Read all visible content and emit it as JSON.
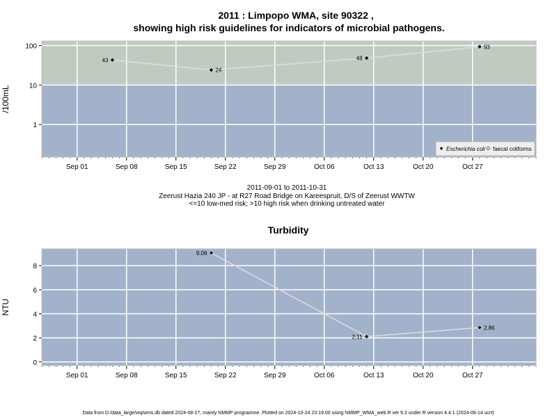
{
  "header": {
    "title_line1": "2011 : Limpopo WMA, site 90322 ,",
    "title_line2": "showing high risk guidelines for indicators of microbial pathogens."
  },
  "middle": {
    "date_range": "2011-09-01 to 2011-10-31",
    "site_desc": "Zeerust Hazia 240 JP - at R27 Road Bridge on Kareespruit, D/S of Zeerust WWTW",
    "risk_note": "<=10 low-med risk; >10 high risk when drinking untreated water"
  },
  "footer": {
    "text": "Data from D:/data_large/wq/wms.db dated 2024-08-27, mainly NMMP programme. Plotted on 2024-10-24 23:19:00 using NMMP_WMA_web.R ver 9.3 under R version 4.4.1 (2024-06-14 ucrt)"
  },
  "colors": {
    "low_risk_band": "#a2b2cb",
    "high_risk_band": "#c1cac0",
    "turbidity_bg": "#a2b2cb",
    "grid": "#ffffff",
    "line": "#dcdcdc",
    "marker": "#222222"
  },
  "chart_data": [
    {
      "type": "line",
      "title": "",
      "xlabel": "",
      "ylabel": "/100mL",
      "yscale": "log",
      "ylim": [
        0.15,
        130
      ],
      "xlim": [
        "2011-08-27",
        "2011-11-05"
      ],
      "x_ticks": [
        {
          "date": "2011-09-01",
          "label": "Sep 01"
        },
        {
          "date": "2011-09-08",
          "label": "Sep 08"
        },
        {
          "date": "2011-09-15",
          "label": "Sep 15"
        },
        {
          "date": "2011-09-22",
          "label": "Sep 22"
        },
        {
          "date": "2011-09-29",
          "label": "Sep 29"
        },
        {
          "date": "2011-10-06",
          "label": "Oct 06"
        },
        {
          "date": "2011-10-13",
          "label": "Oct 13"
        },
        {
          "date": "2011-10-20",
          "label": "Oct 20"
        },
        {
          "date": "2011-10-27",
          "label": "Oct 27"
        }
      ],
      "y_ticks": [
        {
          "value": 1,
          "label": "1"
        },
        {
          "value": 10,
          "label": "10"
        },
        {
          "value": 100,
          "label": "100"
        }
      ],
      "bands": [
        {
          "from": 0.15,
          "to": 10,
          "color": "#a2b2cb"
        },
        {
          "from": 10,
          "to": 130,
          "color": "#c1cac0"
        }
      ],
      "series": [
        {
          "name": "Escherichia coli",
          "marker": "filled-diamond",
          "points": [
            {
              "x": "2011-09-06",
              "y": 43,
              "label": "43",
              "label_side": "left"
            },
            {
              "x": "2011-09-20",
              "y": 24,
              "label": "24",
              "label_side": "right"
            },
            {
              "x": "2011-10-12",
              "y": 48,
              "label": "48",
              "label_side": "left"
            },
            {
              "x": "2011-10-28",
              "y": 93,
              "label": "93",
              "label_side": "right"
            }
          ]
        },
        {
          "name": "faecal coliforms",
          "marker": "open-diamond",
          "points": []
        }
      ],
      "legend": {
        "position": "bottom-right",
        "entries": [
          {
            "label": "Escherichia coli",
            "italic": true,
            "marker": "filled"
          },
          {
            "label": "faecal coliforms",
            "italic": false,
            "marker": "open"
          }
        ]
      },
      "grid": true
    },
    {
      "type": "line",
      "title": "Turbidity",
      "xlabel": "",
      "ylabel": "NTU",
      "yscale": "linear",
      "ylim": [
        -0.3,
        9.4
      ],
      "xlim": [
        "2011-08-27",
        "2011-11-05"
      ],
      "x_ticks": [
        {
          "date": "2011-09-01",
          "label": "Sep 01"
        },
        {
          "date": "2011-09-08",
          "label": "Sep 08"
        },
        {
          "date": "2011-09-15",
          "label": "Sep 15"
        },
        {
          "date": "2011-09-22",
          "label": "Sep 22"
        },
        {
          "date": "2011-09-29",
          "label": "Sep 29"
        },
        {
          "date": "2011-10-06",
          "label": "Oct 06"
        },
        {
          "date": "2011-10-13",
          "label": "Oct 13"
        },
        {
          "date": "2011-10-20",
          "label": "Oct 20"
        },
        {
          "date": "2011-10-27",
          "label": "Oct 27"
        }
      ],
      "y_ticks": [
        {
          "value": 0,
          "label": "0"
        },
        {
          "value": 2,
          "label": "2"
        },
        {
          "value": 4,
          "label": "4"
        },
        {
          "value": 6,
          "label": "6"
        },
        {
          "value": 8,
          "label": "8"
        }
      ],
      "series": [
        {
          "name": "",
          "marker": "filled-diamond",
          "points": [
            {
              "x": "2011-09-20",
              "y": 9.06,
              "label": "9.06",
              "label_side": "left"
            },
            {
              "x": "2011-10-12",
              "y": 2.11,
              "label": "2.11",
              "label_side": "left"
            },
            {
              "x": "2011-10-28",
              "y": 2.86,
              "label": "2.86",
              "label_side": "right"
            }
          ]
        }
      ],
      "grid": true
    }
  ]
}
